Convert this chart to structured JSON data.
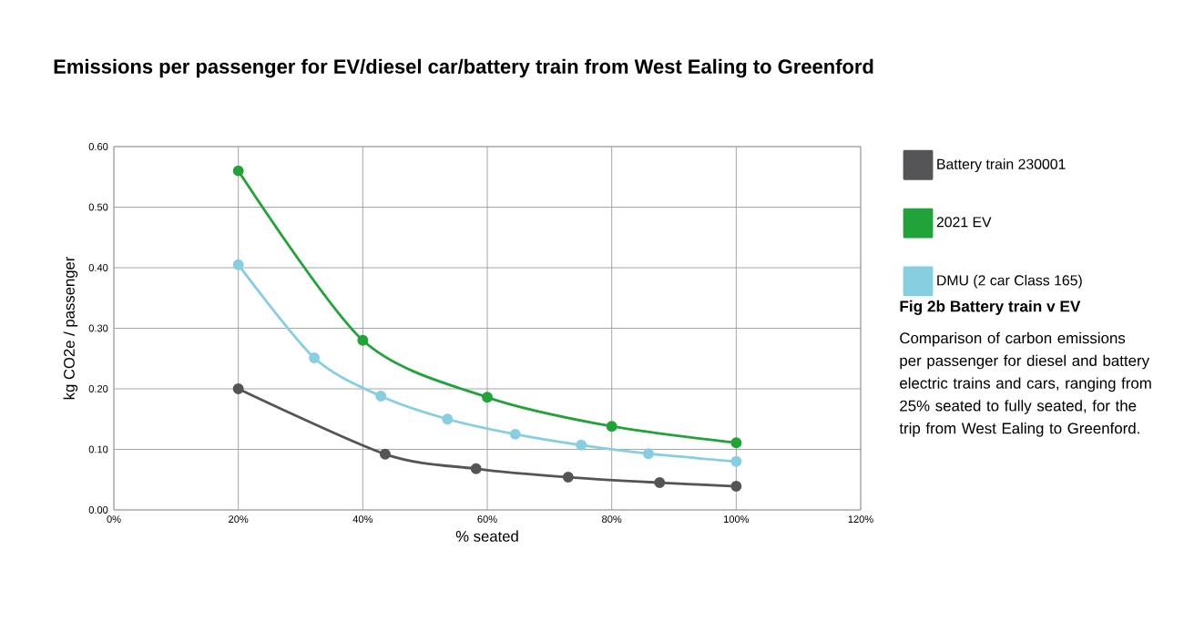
{
  "chart_data": {
    "type": "line",
    "title": "Emissions per passenger for EV/diesel car/battery train from West Ealing to Greenford",
    "xlabel": "% seated",
    "ylabel": "kg CO2e / passenger",
    "series": [
      {
        "name": "Battery train 230001",
        "color": "#555557",
        "x": [
          20,
          43.6,
          58.2,
          73.0,
          87.7,
          100
        ],
        "values": [
          0.2,
          0.092,
          0.068,
          0.054,
          0.045,
          0.039
        ]
      },
      {
        "name": "2021 EV",
        "color": "#22a33a",
        "x": [
          20,
          40,
          60,
          80,
          100
        ],
        "values": [
          0.56,
          0.28,
          0.186,
          0.138,
          0.111
        ]
      },
      {
        "name": "DMU (2 car Class 165)",
        "color": "#87cee1",
        "x": [
          20,
          32.2,
          42.9,
          53.6,
          64.5,
          75.1,
          85.9,
          100
        ],
        "values": [
          0.405,
          0.251,
          0.188,
          0.15,
          0.125,
          0.107,
          0.093,
          0.08
        ]
      }
    ],
    "xlim": [
      0,
      120
    ],
    "ylim": [
      0,
      0.6
    ],
    "xticks": [
      {
        "value": 0,
        "label": "0%"
      },
      {
        "value": 20,
        "label": "20%"
      },
      {
        "value": 40,
        "label": "40%"
      },
      {
        "value": 60,
        "label": "60%"
      },
      {
        "value": 80,
        "label": "80%"
      },
      {
        "value": 100,
        "label": "100%"
      },
      {
        "value": 120,
        "label": "120%"
      }
    ],
    "yticks": [
      {
        "value": 0,
        "label": "0.00"
      },
      {
        "value": 0.1,
        "label": "0.10"
      },
      {
        "value": 0.2,
        "label": "0.20"
      },
      {
        "value": 0.3,
        "label": "0.30"
      },
      {
        "value": 0.4,
        "label": "0.40"
      },
      {
        "value": 0.5,
        "label": "0.50"
      },
      {
        "value": 0.6,
        "label": "0.60"
      }
    ],
    "grid": true,
    "legend": "right",
    "marker": "circle",
    "line_style": "solid",
    "annotations": [
      "Fig 2b Battery train v EV",
      "Comparison of carbon emissions per passenger for diesel and battery electric trains and cars, ranging from 25% seated to fully seated, for the trip from West Ealing to Greenford."
    ]
  }
}
